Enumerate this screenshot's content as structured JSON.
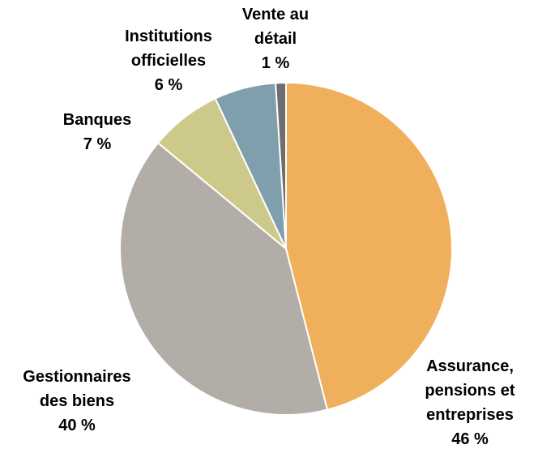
{
  "chart_data": {
    "type": "pie",
    "categories": [
      "Assurance, pensions et entreprises",
      "Gestionnaires des biens",
      "Banques",
      "Institutions officielles",
      "Vente au détail"
    ],
    "values": [
      46,
      40,
      7,
      6,
      1
    ],
    "value_labels": [
      "46 %",
      "40 %",
      "7 %",
      "6 %",
      "1 %"
    ],
    "colors": [
      "#efaf5b",
      "#b2aea7",
      "#cdc98b",
      "#7f9fad",
      "#6e6e6e"
    ]
  }
}
